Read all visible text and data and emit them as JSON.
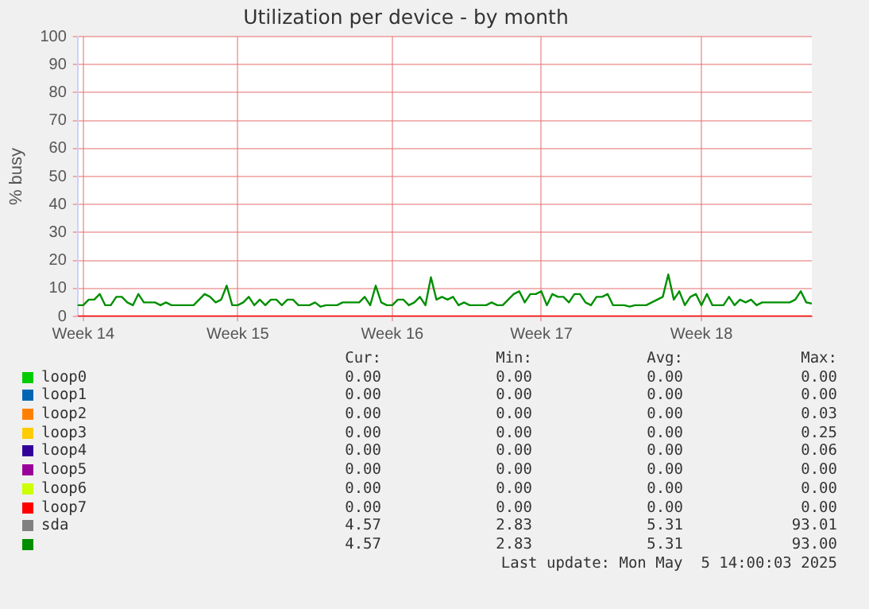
{
  "chart_data": {
    "type": "line",
    "title": "Utilization per device - by month",
    "ylabel": "% busy",
    "categories": [
      null,
      "Week 14",
      null,
      null,
      null,
      null,
      null,
      null,
      null,
      null,
      null,
      null,
      null,
      null,
      null,
      null,
      null,
      null,
      null,
      null,
      null,
      null,
      null,
      null,
      null,
      null,
      null,
      null,
      null,
      "Week 15",
      null,
      null,
      null,
      null,
      null,
      null,
      null,
      null,
      null,
      null,
      null,
      null,
      null,
      null,
      null,
      null,
      null,
      null,
      null,
      null,
      null,
      null,
      null,
      null,
      null,
      null,
      null,
      "Week 16",
      null,
      null,
      null,
      null,
      null,
      null,
      null,
      null,
      null,
      null,
      null,
      null,
      null,
      null,
      null,
      null,
      null,
      null,
      null,
      null,
      null,
      null,
      null,
      null,
      null,
      null,
      "Week 17",
      null,
      null,
      null,
      null,
      null,
      null,
      null,
      null,
      null,
      null,
      null,
      null,
      null,
      null,
      null,
      null,
      null,
      null,
      null,
      null,
      null,
      null,
      null,
      null,
      null,
      null,
      null,
      null,
      "Week 18",
      null,
      null,
      null,
      null,
      null,
      null,
      null,
      null,
      null,
      null,
      null,
      null,
      null,
      null,
      null,
      null,
      null,
      null,
      null,
      null
    ],
    "ylim": [
      0,
      100
    ],
    "yticks": [
      0,
      10,
      20,
      30,
      40,
      50,
      60,
      70,
      80,
      90,
      100
    ],
    "grid": true,
    "legend": "bottom",
    "marker": "none",
    "line_style": "solid",
    "series": [
      {
        "name": "loop0",
        "color": "#00cc00",
        "values": [
          null,
          null,
          null,
          null,
          null,
          null,
          null,
          null,
          null,
          null,
          null,
          null,
          null,
          null,
          null,
          null,
          null,
          null,
          null,
          null,
          null,
          null,
          null,
          null,
          null,
          null,
          null,
          null,
          null,
          null,
          null,
          null,
          null,
          null,
          null,
          null,
          null,
          null,
          null,
          null,
          null,
          null,
          null,
          null,
          null,
          null,
          null,
          null,
          null,
          null,
          null,
          null,
          null,
          null,
          null,
          null,
          null,
          null,
          null,
          null,
          null,
          null,
          null,
          null,
          null,
          null,
          null,
          null,
          null,
          null,
          null,
          null,
          null,
          null,
          null,
          null,
          null,
          null,
          null,
          null,
          null,
          null,
          null,
          null,
          null,
          null,
          null,
          null,
          null,
          null,
          null,
          null,
          null,
          null,
          null,
          null,
          null,
          null,
          null,
          null,
          null,
          null,
          null,
          null,
          null,
          null,
          null,
          null,
          null,
          null,
          null,
          null,
          null,
          null,
          null,
          null,
          null,
          null,
          null,
          null,
          null,
          null,
          null,
          null,
          null,
          null,
          null,
          null,
          null,
          null,
          null,
          null,
          null,
          null
        ]
      },
      {
        "name": "loop1",
        "color": "#0066b3",
        "values": [
          null,
          null,
          null,
          null,
          null,
          null,
          null,
          null,
          null,
          null,
          null,
          null,
          null,
          null,
          null,
          null,
          null,
          null,
          null,
          null,
          null,
          null,
          null,
          null,
          null,
          null,
          null,
          null,
          null,
          null,
          null,
          null,
          null,
          null,
          null,
          null,
          null,
          null,
          null,
          null,
          null,
          null,
          null,
          null,
          null,
          null,
          null,
          null,
          null,
          null,
          null,
          null,
          null,
          null,
          null,
          null,
          null,
          null,
          null,
          null,
          null,
          null,
          null,
          null,
          null,
          null,
          null,
          null,
          null,
          null,
          null,
          null,
          null,
          null,
          null,
          null,
          null,
          null,
          null,
          null,
          null,
          null,
          null,
          null,
          null,
          null,
          null,
          null,
          null,
          null,
          null,
          null,
          null,
          null,
          null,
          null,
          null,
          null,
          null,
          null,
          null,
          null,
          null,
          null,
          null,
          null,
          null,
          null,
          null,
          null,
          null,
          null,
          null,
          null,
          null,
          null,
          null,
          null,
          null,
          null,
          null,
          null,
          null,
          null,
          null,
          null,
          null,
          null,
          null,
          null,
          null,
          null,
          null,
          null
        ]
      },
      {
        "name": "loop2",
        "color": "#ff8000",
        "values": [
          null,
          null,
          null,
          null,
          null,
          null,
          null,
          null,
          null,
          null,
          null,
          null,
          null,
          null,
          null,
          null,
          null,
          null,
          null,
          null,
          null,
          null,
          null,
          null,
          null,
          null,
          null,
          null,
          null,
          null,
          null,
          null,
          null,
          null,
          null,
          null,
          null,
          null,
          null,
          null,
          null,
          null,
          null,
          null,
          null,
          null,
          null,
          null,
          null,
          null,
          null,
          null,
          null,
          null,
          null,
          null,
          null,
          null,
          null,
          null,
          null,
          null,
          null,
          null,
          null,
          null,
          null,
          null,
          null,
          null,
          null,
          null,
          null,
          null,
          null,
          null,
          null,
          null,
          null,
          null,
          null,
          null,
          null,
          null,
          null,
          null,
          null,
          null,
          null,
          null,
          null,
          null,
          null,
          null,
          null,
          null,
          null,
          null,
          null,
          null,
          null,
          null,
          null,
          null,
          null,
          null,
          null,
          null,
          null,
          null,
          null,
          null,
          null,
          null,
          null,
          null,
          null,
          null,
          null,
          null,
          null,
          null,
          null,
          null,
          null,
          null,
          null,
          null,
          null,
          null,
          null,
          null,
          null,
          null
        ]
      },
      {
        "name": "loop3",
        "color": "#ffcc00",
        "values": [
          null,
          null,
          null,
          null,
          null,
          null,
          null,
          null,
          null,
          null,
          null,
          null,
          null,
          null,
          null,
          null,
          null,
          null,
          null,
          null,
          null,
          null,
          null,
          null,
          null,
          null,
          null,
          null,
          null,
          null,
          null,
          null,
          null,
          null,
          null,
          null,
          null,
          null,
          null,
          null,
          null,
          null,
          null,
          null,
          null,
          null,
          null,
          null,
          null,
          null,
          null,
          null,
          null,
          null,
          null,
          null,
          null,
          null,
          null,
          null,
          null,
          null,
          null,
          null,
          null,
          null,
          null,
          null,
          null,
          null,
          null,
          null,
          null,
          null,
          null,
          null,
          null,
          null,
          null,
          null,
          null,
          null,
          null,
          null,
          null,
          null,
          null,
          null,
          null,
          null,
          null,
          null,
          null,
          null,
          null,
          null,
          null,
          null,
          null,
          null,
          null,
          null,
          null,
          null,
          null,
          null,
          null,
          null,
          null,
          null,
          null,
          null,
          null,
          null,
          null,
          null,
          null,
          null,
          null,
          null,
          null,
          null,
          null,
          null,
          null,
          null,
          null,
          null,
          null,
          null,
          null,
          null,
          null,
          null
        ]
      },
      {
        "name": "loop4",
        "color": "#330099",
        "values": [
          null,
          null,
          null,
          null,
          null,
          null,
          null,
          null,
          null,
          null,
          null,
          null,
          null,
          null,
          null,
          null,
          null,
          null,
          null,
          null,
          null,
          null,
          null,
          null,
          null,
          null,
          null,
          null,
          null,
          null,
          null,
          null,
          null,
          null,
          null,
          null,
          null,
          null,
          null,
          null,
          null,
          null,
          null,
          null,
          null,
          null,
          null,
          null,
          null,
          null,
          null,
          null,
          null,
          null,
          null,
          null,
          null,
          null,
          null,
          null,
          null,
          null,
          null,
          null,
          null,
          null,
          null,
          null,
          null,
          null,
          null,
          null,
          null,
          null,
          null,
          null,
          null,
          null,
          null,
          null,
          null,
          null,
          null,
          null,
          null,
          null,
          null,
          null,
          null,
          null,
          null,
          null,
          null,
          null,
          null,
          null,
          null,
          null,
          null,
          null,
          null,
          null,
          null,
          null,
          null,
          null,
          null,
          null,
          null,
          null,
          null,
          null,
          null,
          null,
          null,
          null,
          null,
          null,
          null,
          null,
          null,
          null,
          null,
          null,
          null,
          null,
          null,
          null,
          null,
          null,
          null,
          null,
          null,
          null
        ]
      },
      {
        "name": "loop5",
        "color": "#990099",
        "values": [
          null,
          null,
          null,
          null,
          null,
          null,
          null,
          null,
          null,
          null,
          null,
          null,
          null,
          null,
          null,
          null,
          null,
          null,
          null,
          null,
          null,
          null,
          null,
          null,
          null,
          null,
          null,
          null,
          null,
          null,
          null,
          null,
          null,
          null,
          null,
          null,
          null,
          null,
          null,
          null,
          null,
          null,
          null,
          null,
          null,
          null,
          null,
          null,
          null,
          null,
          null,
          null,
          null,
          null,
          null,
          null,
          null,
          null,
          null,
          null,
          null,
          null,
          null,
          null,
          null,
          null,
          null,
          null,
          null,
          null,
          null,
          null,
          null,
          null,
          null,
          null,
          null,
          null,
          null,
          null,
          null,
          null,
          null,
          null,
          null,
          null,
          null,
          null,
          null,
          null,
          null,
          null,
          null,
          null,
          null,
          null,
          null,
          null,
          null,
          null,
          null,
          null,
          null,
          null,
          null,
          null,
          null,
          null,
          null,
          null,
          null,
          null,
          null,
          null,
          null,
          null,
          null,
          null,
          null,
          null,
          null,
          null,
          null,
          null,
          null,
          null,
          null,
          null,
          null,
          null,
          null,
          null,
          null,
          null
        ]
      },
      {
        "name": "loop6",
        "color": "#ccff00",
        "values": [
          null,
          null,
          null,
          null,
          null,
          null,
          null,
          null,
          null,
          null,
          null,
          null,
          null,
          null,
          null,
          null,
          null,
          null,
          null,
          null,
          null,
          null,
          null,
          null,
          null,
          null,
          null,
          null,
          null,
          null,
          null,
          null,
          null,
          null,
          null,
          null,
          null,
          null,
          null,
          null,
          null,
          null,
          null,
          null,
          null,
          null,
          null,
          null,
          null,
          null,
          null,
          null,
          null,
          null,
          null,
          null,
          null,
          null,
          null,
          null,
          null,
          null,
          null,
          null,
          null,
          null,
          null,
          null,
          null,
          null,
          null,
          null,
          null,
          null,
          null,
          null,
          null,
          null,
          null,
          null,
          null,
          null,
          null,
          null,
          null,
          null,
          null,
          null,
          null,
          null,
          null,
          null,
          null,
          null,
          null,
          null,
          null,
          null,
          null,
          null,
          null,
          null,
          null,
          null,
          null,
          null,
          null,
          null,
          null,
          null,
          null,
          null,
          null,
          null,
          null,
          null,
          null,
          null,
          null,
          null,
          null,
          null,
          null,
          null,
          null,
          null,
          null,
          null,
          null,
          null,
          null,
          null,
          null,
          null
        ]
      },
      {
        "name": "loop7",
        "color": "#ff0000",
        "values": [
          0,
          0,
          0,
          0,
          0,
          0,
          0,
          0,
          0,
          0,
          0,
          0,
          0,
          0,
          0,
          0,
          0,
          0,
          0,
          0,
          0,
          0,
          0,
          0,
          0,
          0,
          0,
          0,
          0,
          0,
          0,
          0,
          0,
          0,
          0,
          0,
          0,
          0,
          0,
          0,
          0,
          0,
          0,
          0,
          0,
          0,
          0,
          0,
          0,
          0,
          0,
          0,
          0,
          0,
          0,
          0,
          0,
          0,
          0,
          0,
          0,
          0,
          0,
          0,
          0,
          0,
          0,
          0,
          0,
          0,
          0,
          0,
          0,
          0,
          0,
          0,
          0,
          0,
          0,
          0,
          0,
          0,
          0,
          0,
          0,
          0,
          0,
          0,
          0,
          0,
          0,
          0,
          0,
          0,
          0,
          0,
          0,
          0,
          0,
          0,
          0,
          0,
          0,
          0,
          0,
          0,
          0,
          0,
          0,
          0,
          0,
          0,
          0,
          0,
          0,
          0,
          0,
          0,
          0,
          0,
          0,
          0,
          0,
          0,
          0,
          0,
          0,
          0,
          0,
          0,
          0,
          0,
          0,
          0
        ]
      },
      {
        "name": "sda",
        "color": "#808080",
        "values": [
          null,
          null,
          null,
          null,
          null,
          null,
          null,
          null,
          null,
          null,
          null,
          null,
          null,
          null,
          null,
          null,
          null,
          null,
          null,
          null,
          null,
          null,
          null,
          null,
          null,
          null,
          null,
          null,
          null,
          null,
          null,
          null,
          null,
          null,
          null,
          null,
          null,
          null,
          null,
          null,
          null,
          null,
          null,
          null,
          null,
          null,
          null,
          null,
          null,
          null,
          null,
          null,
          null,
          null,
          null,
          null,
          null,
          null,
          null,
          null,
          null,
          null,
          null,
          null,
          null,
          null,
          null,
          null,
          null,
          null,
          null,
          null,
          null,
          null,
          null,
          null,
          null,
          null,
          null,
          null,
          null,
          null,
          null,
          null,
          null,
          null,
          null,
          null,
          null,
          null,
          null,
          null,
          null,
          null,
          null,
          null,
          null,
          null,
          null,
          null,
          null,
          null,
          null,
          null,
          null,
          null,
          null,
          null,
          null,
          null,
          null,
          null,
          null,
          null,
          null,
          null,
          null,
          null,
          null,
          null,
          null,
          null,
          null,
          null,
          null,
          null,
          null,
          null,
          null,
          null,
          null,
          null,
          null,
          null
        ]
      },
      {
        "color": "#008f00",
        "values": [
          4,
          4,
          6,
          6,
          8,
          4,
          4,
          7,
          7,
          5,
          4,
          8,
          5,
          5,
          5,
          4,
          5,
          4,
          4,
          4,
          4,
          4,
          6,
          8,
          7,
          5,
          6,
          11,
          4,
          4,
          5,
          7,
          4,
          6,
          4,
          6,
          6,
          4,
          6,
          6,
          4,
          4,
          4,
          5,
          3.5,
          4,
          4,
          4,
          5,
          5,
          5,
          5,
          7,
          4,
          11,
          5,
          4,
          4,
          6,
          6,
          4,
          5,
          7,
          4,
          14,
          6,
          7,
          6,
          7,
          4,
          5,
          4,
          4,
          4,
          4,
          5,
          4,
          4,
          6,
          8,
          9,
          5,
          8,
          8,
          9,
          4,
          8,
          7,
          7,
          5,
          8,
          8,
          5,
          4,
          7,
          7,
          8,
          4,
          4,
          4,
          3.5,
          4,
          4,
          4,
          5,
          6,
          7,
          15,
          6,
          9,
          4,
          7,
          8,
          4,
          8,
          4,
          4,
          4,
          7,
          4,
          6,
          5,
          6,
          4,
          5,
          5,
          5,
          5,
          5,
          5,
          6,
          9,
          5,
          4.6
        ]
      }
    ],
    "annotations": [
      "Cur:",
      "Min:",
      "Avg:",
      "Max:",
      "0.00",
      "0.00",
      "0.00",
      "0.00",
      "0.00",
      "0.00",
      "0.00",
      "0.00",
      "0.00",
      "0.00",
      "0.00",
      "0.03",
      "0.00",
      "0.00",
      "0.00",
      "0.25",
      "0.00",
      "0.00",
      "0.00",
      "0.06",
      "0.00",
      "0.00",
      "0.00",
      "0.00",
      "0.00",
      "0.00",
      "0.00",
      "0.00",
      "0.00",
      "0.00",
      "0.00",
      "0.00",
      "4.57",
      "2.83",
      "5.31",
      "93.01",
      "4.57",
      "2.83",
      "5.31",
      "93.00",
      "Last update: Mon May  5 14:00:03 2025"
    ]
  }
}
